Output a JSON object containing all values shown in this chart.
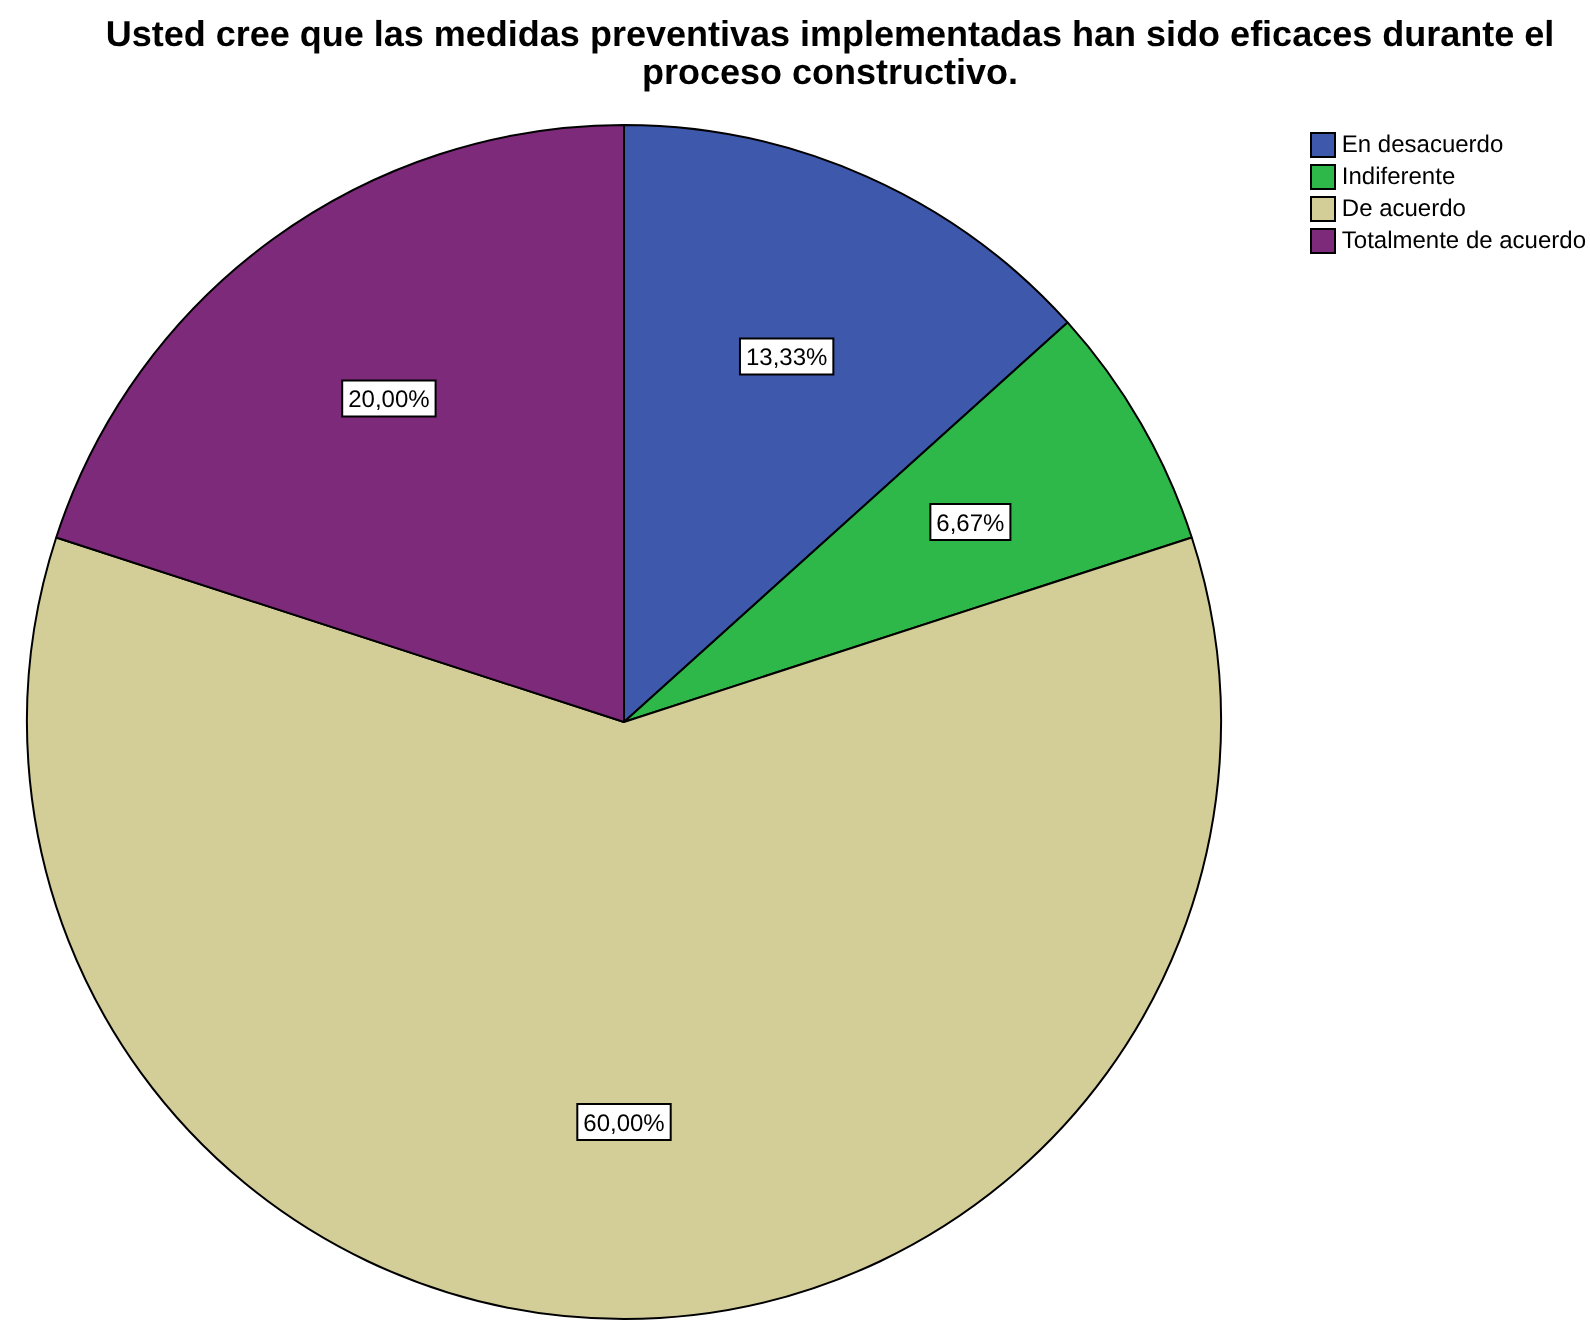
{
  "chart_data": {
    "type": "pie",
    "title": "Usted cree que las medidas preventivas implementadas han sido eficaces durante el proceso constructivo.",
    "categories": [
      "En desacuerdo",
      "Indiferente",
      "De acuerdo",
      "Totalmente de acuerdo"
    ],
    "values": [
      13.33,
      6.67,
      60,
      20
    ],
    "colors": [
      "#3e58ac",
      "#2fb84a",
      "#d3ce97",
      "#7d2a7a"
    ],
    "value_labels": [
      "13,33%",
      "6,67%",
      "60,00%",
      "20,00%"
    ],
    "legend": "top right"
  }
}
